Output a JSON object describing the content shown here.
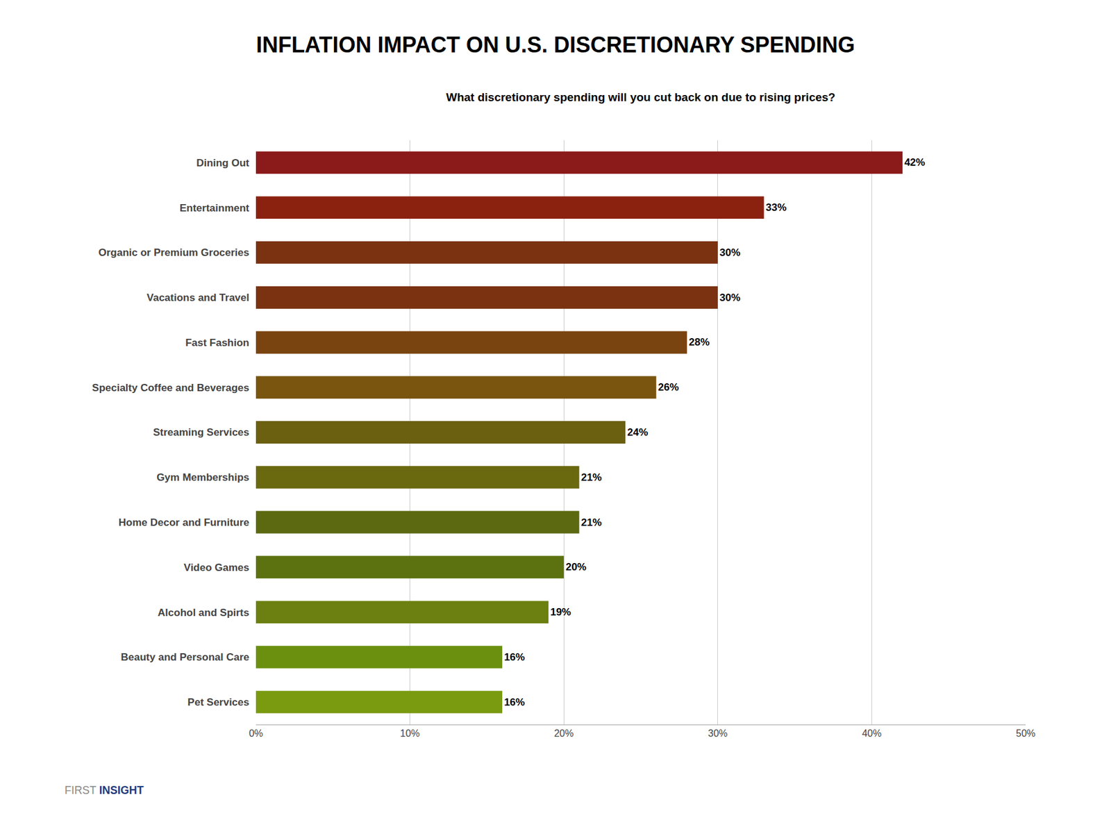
{
  "chart_data": {
    "type": "bar",
    "orientation": "horizontal",
    "title": "INFLATION IMPACT ON U.S. DISCRETIONARY SPENDING",
    "subtitle": "What discretionary spending will you cut back on due to rising prices?",
    "categories": [
      "Dining Out",
      "Entertainment",
      "Organic or Premium Groceries",
      "Vacations and Travel",
      "Fast Fashion",
      "Specialty Coffee and Beverages",
      "Streaming Services",
      "Gym Memberships",
      "Home Decor and Furniture",
      "Video Games",
      "Alcohol and Spirts",
      "Beauty and Personal Care",
      "Pet Services"
    ],
    "values": [
      42,
      33,
      30,
      30,
      28,
      26,
      24,
      21,
      21,
      20,
      19,
      16,
      16
    ],
    "value_labels": [
      "42%",
      "33%",
      "30%",
      "30%",
      "28%",
      "26%",
      "24%",
      "21%",
      "21%",
      "20%",
      "19%",
      "16%",
      "16%"
    ],
    "data_labels": true,
    "colors": [
      "#8B1A1A",
      "#8B2210",
      "#7A3210",
      "#7A3210",
      "#7A4410",
      "#7A5510",
      "#6B5F10",
      "#6B6910",
      "#5C6910",
      "#5C7210",
      "#6B8010",
      "#6B9010",
      "#7A9A10"
    ],
    "xlim": [
      0,
      50
    ],
    "xticks": [
      {
        "value": 0,
        "label": "0%"
      },
      {
        "value": 10,
        "label": "10%"
      },
      {
        "value": 20,
        "label": "20%"
      },
      {
        "value": 30,
        "label": "30%"
      },
      {
        "value": 40,
        "label": "40%"
      },
      {
        "value": 50,
        "label": "50%"
      }
    ],
    "grid": true,
    "annotations": [
      "FIRST",
      "INSIGHT"
    ]
  }
}
